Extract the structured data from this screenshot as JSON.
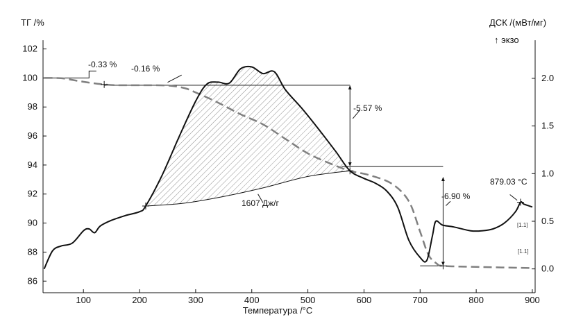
{
  "chart_data": {
    "type": "line",
    "title": "",
    "xlabel": "Температура /°C",
    "ylabel_left": "ТГ /%",
    "ylabel_right": "ДСК /(мВт/мг)",
    "right_note": "↑ экзо",
    "xlim": [
      28,
      905
    ],
    "ylim_left": [
      85.2,
      102.6
    ],
    "ylim_right": [
      -0.25,
      2.4
    ],
    "x_ticks": [
      100,
      200,
      300,
      400,
      500,
      600,
      700,
      800,
      900
    ],
    "y_left_ticks": [
      86,
      88,
      90,
      92,
      94,
      96,
      98,
      100,
      102
    ],
    "y_right_ticks": [
      "0.0",
      "0.5",
      "1.0",
      "1.5",
      "2.0"
    ],
    "series": [
      {
        "name": "ТГ",
        "axis": "left",
        "style": "dashed",
        "color": "#808080",
        "points": [
          [
            30,
            100.0
          ],
          [
            60,
            99.98
          ],
          [
            90,
            99.8
          ],
          [
            110,
            99.68
          ],
          [
            137,
            99.55
          ],
          [
            160,
            99.5
          ],
          [
            200,
            99.5
          ],
          [
            250,
            99.48
          ],
          [
            280,
            99.3
          ],
          [
            300,
            99.0
          ],
          [
            340,
            98.3
          ],
          [
            380,
            97.5
          ],
          [
            420,
            96.8
          ],
          [
            460,
            95.8
          ],
          [
            500,
            94.8
          ],
          [
            540,
            94.1
          ],
          [
            575,
            93.6
          ],
          [
            610,
            93.3
          ],
          [
            650,
            92.7
          ],
          [
            680,
            91.5
          ],
          [
            700,
            89.4
          ],
          [
            715,
            87.8
          ],
          [
            730,
            87.2
          ],
          [
            741,
            87.05
          ],
          [
            800,
            86.98
          ],
          [
            900,
            86.9
          ]
        ]
      },
      {
        "name": "ДСК",
        "axis": "right",
        "style": "solid",
        "color": "#111111",
        "points": [
          [
            30,
            0.0
          ],
          [
            45,
            0.19
          ],
          [
            60,
            0.24
          ],
          [
            80,
            0.27
          ],
          [
            100,
            0.4
          ],
          [
            110,
            0.42
          ],
          [
            120,
            0.38
          ],
          [
            130,
            0.45
          ],
          [
            150,
            0.51
          ],
          [
            175,
            0.56
          ],
          [
            200,
            0.6
          ],
          [
            211,
            0.66
          ],
          [
            240,
            0.98
          ],
          [
            270,
            1.38
          ],
          [
            300,
            1.76
          ],
          [
            320,
            1.94
          ],
          [
            340,
            1.96
          ],
          [
            360,
            1.95
          ],
          [
            380,
            2.1
          ],
          [
            400,
            2.12
          ],
          [
            420,
            2.05
          ],
          [
            440,
            2.07
          ],
          [
            460,
            1.88
          ],
          [
            490,
            1.68
          ],
          [
            520,
            1.46
          ],
          [
            550,
            1.23
          ],
          [
            575,
            1.03
          ],
          [
            600,
            0.95
          ],
          [
            620,
            0.9
          ],
          [
            640,
            0.82
          ],
          [
            660,
            0.65
          ],
          [
            680,
            0.3
          ],
          [
            700,
            0.12
          ],
          [
            712,
            0.09
          ],
          [
            722,
            0.35
          ],
          [
            728,
            0.5
          ],
          [
            740,
            0.46
          ],
          [
            760,
            0.44
          ],
          [
            790,
            0.4
          ],
          [
            810,
            0.4
          ],
          [
            830,
            0.42
          ],
          [
            850,
            0.48
          ],
          [
            870,
            0.6
          ],
          [
            879,
            0.7
          ],
          [
            885,
            0.68
          ],
          [
            900,
            0.65
          ]
        ]
      }
    ],
    "annotations": [
      {
        "text": "-0.33 %"
      },
      {
        "text": "-0.16 %"
      },
      {
        "text": "-5.57 %"
      },
      {
        "text": "-6.90 %"
      },
      {
        "text": "1607 Дж/г"
      },
      {
        "text": "879.03 °C"
      },
      {
        "text": "[1.1]"
      },
      {
        "text": "[1.1]"
      }
    ]
  }
}
